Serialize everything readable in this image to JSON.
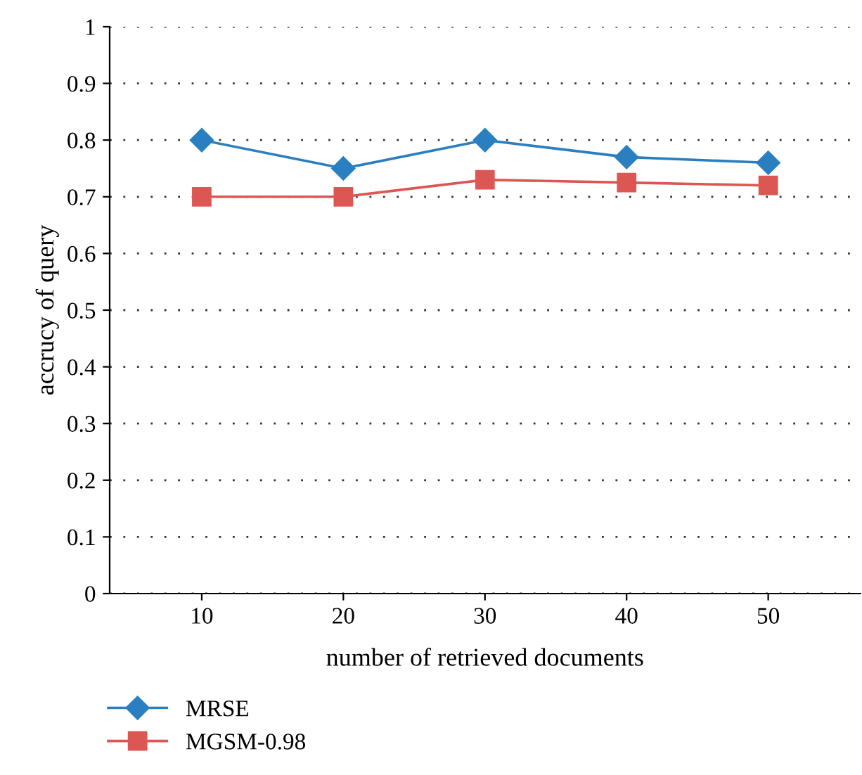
{
  "chart_data": {
    "type": "line",
    "xlabel": "number of retrieved documents",
    "ylabel": "accrucy of query",
    "categories": [
      "10",
      "20",
      "30",
      "40",
      "50"
    ],
    "series": [
      {
        "name": "MRSE",
        "color": "#2a7fc1",
        "marker": "diamond",
        "values": [
          0.8,
          0.75,
          0.8,
          0.77,
          0.76
        ]
      },
      {
        "name": "MGSM-0.98",
        "color": "#dc5754",
        "marker": "square",
        "values": [
          0.7,
          0.7,
          0.73,
          0.725,
          0.72
        ]
      }
    ],
    "ylim": [
      0,
      1
    ],
    "yticks": [
      0,
      0.1,
      0.2,
      0.3,
      0.4,
      0.5,
      0.6,
      0.7,
      0.8,
      0.9,
      1
    ],
    "grid": "y",
    "legend": "bottom left"
  }
}
